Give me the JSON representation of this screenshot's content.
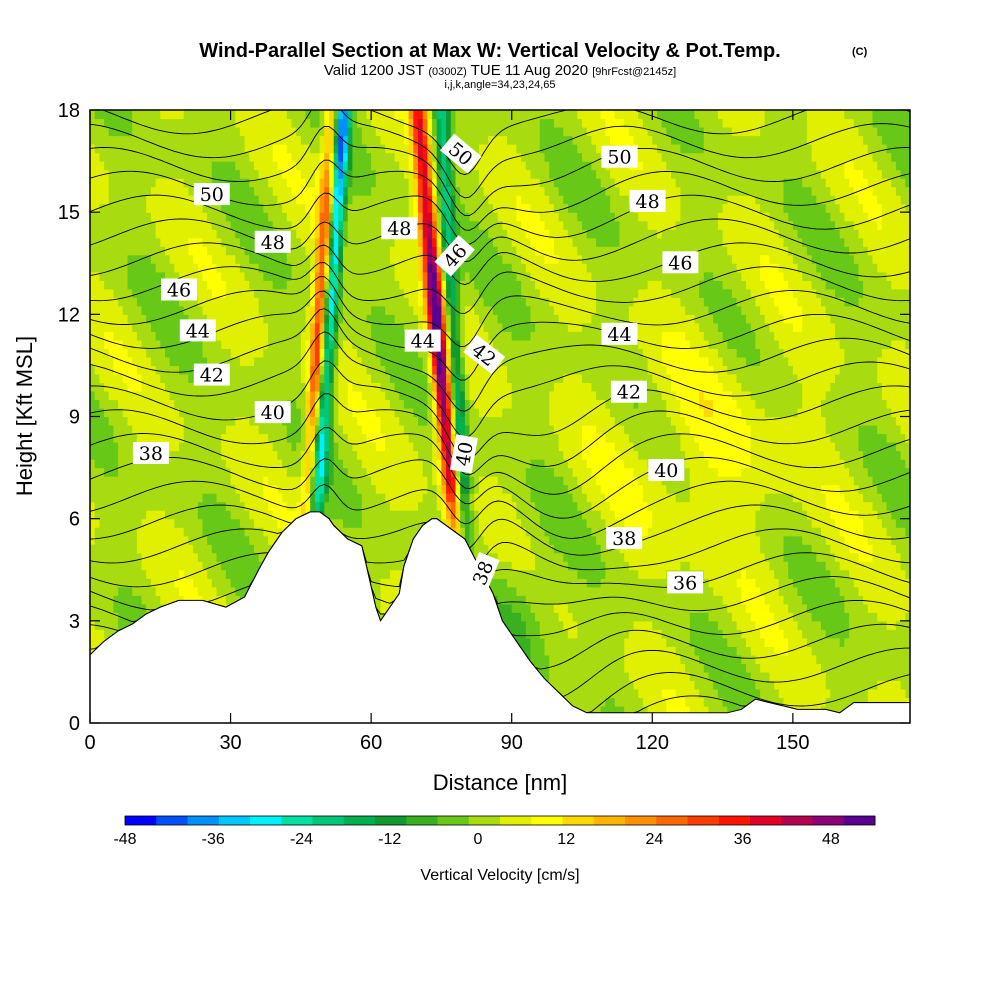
{
  "chart_data": {
    "type": "heatmap",
    "title": "Wind-Parallel Section at Max W: Vertical Velocity & Pot.Temp.",
    "title_mark": "(C)",
    "subtitle": {
      "part1": "Valid 1200 JST",
      "part2": "(0300Z)",
      "part3": "TUE 11 Aug 2020",
      "part4": "[9hrFcst@2145z]"
    },
    "subtitle2": "i,j,k,angle=34,23,24,65",
    "xlabel": "Distance [nm]",
    "ylabel": "Height [Kft MSL]",
    "xlim": [
      0,
      175
    ],
    "ylim": [
      0,
      18
    ],
    "x_ticks": [
      0,
      30,
      60,
      90,
      120,
      150
    ],
    "y_ticks": [
      0,
      3,
      6,
      9,
      12,
      15,
      18
    ],
    "colorbar": {
      "title": "Vertical Velocity [cm/s]",
      "range": [
        -48,
        54
      ],
      "tick_values": [
        -48,
        -36,
        -24,
        -12,
        0,
        12,
        24,
        36,
        48
      ],
      "colors": [
        "#0000ff",
        "#0050ff",
        "#0090ff",
        "#00c8ff",
        "#00f0ff",
        "#00e0a0",
        "#00c878",
        "#00b050",
        "#109a30",
        "#38b020",
        "#68c818",
        "#a8dc10",
        "#e0f000",
        "#ffff00",
        "#ffd800",
        "#ffb400",
        "#ff9000",
        "#ff6800",
        "#ff3c00",
        "#ff1400",
        "#e00028",
        "#b40050",
        "#8c0078",
        "#5a0090"
      ]
    },
    "updraft_bands": [
      {
        "x_bottom": 47,
        "x_top": 52,
        "peak_cm_s": 42
      },
      {
        "x_bottom": 78,
        "x_top": 70,
        "peak_cm_s": 54
      }
    ],
    "downdraft_bands": [
      {
        "x_bottom": 48,
        "x_top": 54,
        "peak_cm_s": -45
      },
      {
        "x_bottom": 80,
        "x_top": 75,
        "peak_cm_s": -22
      }
    ],
    "terrain": {
      "x": [
        0,
        3,
        6,
        9,
        12,
        15,
        19,
        22,
        24,
        29,
        33,
        36,
        38,
        41,
        44,
        47,
        49,
        51,
        52,
        55,
        58,
        61,
        62,
        64,
        66,
        67,
        69,
        71,
        73,
        74,
        76,
        78,
        80,
        83,
        86,
        88,
        91,
        94,
        97,
        100,
        103,
        106,
        109,
        112,
        115,
        118,
        121,
        124,
        127,
        130,
        133,
        136,
        139,
        142,
        145,
        148,
        151,
        154,
        157,
        160,
        163,
        166,
        169,
        175
      ],
      "y": [
        2.0,
        2.4,
        2.7,
        2.9,
        3.2,
        3.4,
        3.6,
        3.6,
        3.6,
        3.4,
        3.7,
        4.5,
        5.0,
        5.6,
        6.0,
        6.2,
        6.2,
        6.0,
        5.8,
        5.4,
        5.2,
        3.4,
        3.0,
        3.4,
        3.8,
        4.6,
        5.4,
        5.8,
        6.0,
        6.0,
        5.8,
        5.6,
        5.4,
        4.6,
        3.8,
        3.0,
        2.4,
        1.8,
        1.3,
        0.9,
        0.5,
        0.3,
        0.3,
        0.3,
        0.3,
        0.3,
        0.3,
        0.3,
        0.3,
        0.3,
        0.3,
        0.3,
        0.4,
        0.7,
        0.6,
        0.5,
        0.4,
        0.4,
        0.4,
        0.3,
        0.6,
        0.6,
        0.6,
        0.6
      ]
    },
    "contour_labels": [
      {
        "text": "50",
        "x": 26,
        "y": 15.5,
        "angle": 0
      },
      {
        "text": "48",
        "x": 39,
        "y": 14.1,
        "angle": 0
      },
      {
        "text": "46",
        "x": 19,
        "y": 12.7,
        "angle": 0
      },
      {
        "text": "44",
        "x": 23,
        "y": 11.5,
        "angle": 0
      },
      {
        "text": "42",
        "x": 26,
        "y": 10.2,
        "angle": 0
      },
      {
        "text": "40",
        "x": 39,
        "y": 9.1,
        "angle": 0
      },
      {
        "text": "38",
        "x": 13,
        "y": 7.9,
        "angle": 0
      },
      {
        "text": "50",
        "x": 79,
        "y": 16.7,
        "angle": 40
      },
      {
        "text": "48",
        "x": 66,
        "y": 14.5,
        "angle": 0
      },
      {
        "text": "46",
        "x": 78,
        "y": 13.7,
        "angle": -48
      },
      {
        "text": "44",
        "x": 71,
        "y": 11.2,
        "angle": 0
      },
      {
        "text": "42",
        "x": 84,
        "y": 10.8,
        "angle": 38
      },
      {
        "text": "40",
        "x": 80,
        "y": 7.9,
        "angle": -80
      },
      {
        "text": "38",
        "x": 84,
        "y": 4.4,
        "angle": -68
      },
      {
        "text": "50",
        "x": 113,
        "y": 16.6,
        "angle": 0
      },
      {
        "text": "48",
        "x": 119,
        "y": 15.3,
        "angle": 0
      },
      {
        "text": "46",
        "x": 126,
        "y": 13.5,
        "angle": 0
      },
      {
        "text": "44",
        "x": 113,
        "y": 11.4,
        "angle": 0
      },
      {
        "text": "42",
        "x": 115,
        "y": 9.7,
        "angle": 0
      },
      {
        "text": "40",
        "x": 123,
        "y": 7.4,
        "angle": 0
      },
      {
        "text": "38",
        "x": 114,
        "y": 5.4,
        "angle": 0
      },
      {
        "text": "36",
        "x": 127,
        "y": 4.1,
        "angle": 0
      }
    ]
  }
}
